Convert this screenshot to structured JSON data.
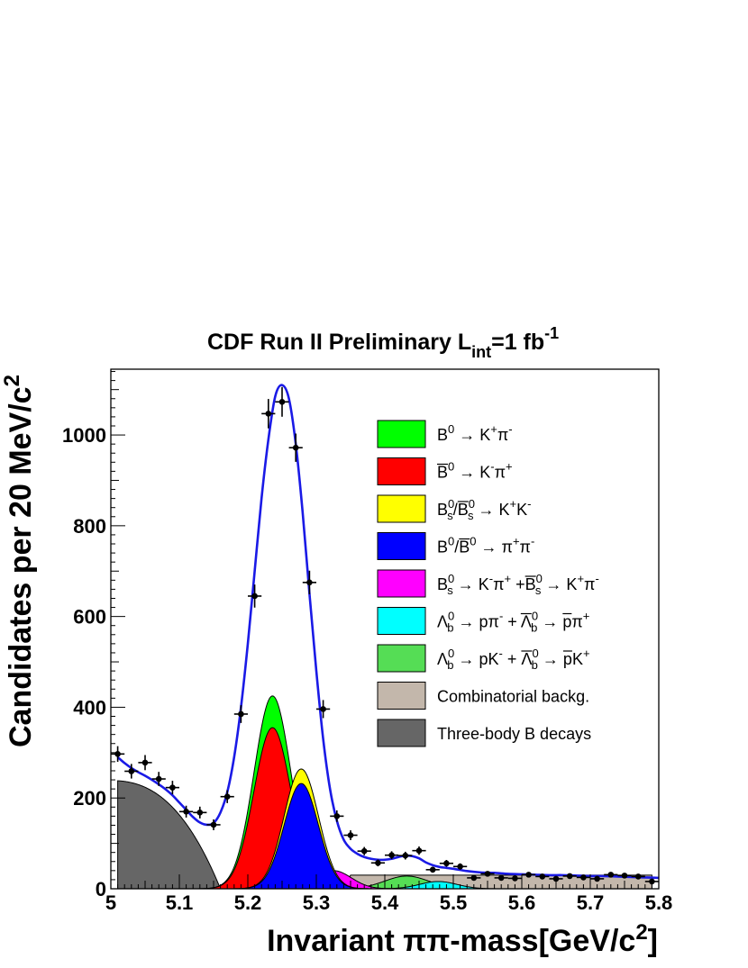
{
  "chart_data": {
    "type": "area",
    "title": {
      "base": "CDF Run II  Preliminary L",
      "sub": "int",
      "mid": "=1 fb",
      "sup": "-1"
    },
    "xlabel": {
      "base": "Invariant ππ-mass[GeV/c",
      "sup": "2",
      "end": "]"
    },
    "ylabel": {
      "base": "Candidates per 20 MeV/c",
      "sup": "2"
    },
    "xlim": [
      5.0,
      5.8
    ],
    "ylim": [
      0,
      1145
    ],
    "x_ticks": [
      "5",
      "5.1",
      "5.2",
      "5.3",
      "5.4",
      "5.5",
      "5.6",
      "5.7",
      "5.8"
    ],
    "x_tick_values": [
      5.0,
      5.1,
      5.2,
      5.3,
      5.4,
      5.5,
      5.6,
      5.7,
      5.8
    ],
    "y_ticks": [
      "0",
      "200",
      "400",
      "600",
      "800",
      "1000"
    ],
    "y_tick_values": [
      0,
      200,
      400,
      600,
      800,
      1000
    ],
    "legend_placement": "top-right",
    "components": [
      {
        "name": "B0 -> K+ pi-",
        "color": "#00ff00",
        "shape": "gauss",
        "mean": 5.236,
        "sigma": 0.026,
        "amp": 70,
        "stack_on": "Bbar0 -> K- pi+"
      },
      {
        "name": "Bbar0 -> K- pi+",
        "color": "#ff0000",
        "shape": "gauss",
        "mean": 5.236,
        "sigma": 0.027,
        "amp": 355,
        "stack_on": "baseline"
      },
      {
        "name": "Bs0/Bsbar0 -> K+ K-",
        "color": "#ffff00",
        "shape": "gauss",
        "mean": 5.278,
        "sigma": 0.026,
        "amp": 32,
        "stack_on": "B0/Bbar0 -> pi+ pi-"
      },
      {
        "name": "B0/Bbar0 -> pi+ pi-",
        "color": "#0000ff",
        "shape": "gauss",
        "mean": 5.278,
        "sigma": 0.025,
        "amp": 232,
        "stack_on": "baseline"
      },
      {
        "name": "Bs0 -> K- pi+ + Bsbar0 -> K+ pi-",
        "color": "#ff00ff",
        "shape": "gauss",
        "mean": 5.325,
        "sigma": 0.026,
        "amp": 40,
        "stack_on": "baseline"
      },
      {
        "name": "Lambda_b0 -> p pi- + Lambdabar_b0 -> pbar pi+",
        "color": "#00ffff",
        "shape": "gauss",
        "mean": 5.478,
        "sigma": 0.027,
        "amp": 16,
        "stack_on": "baseline"
      },
      {
        "name": "Lambda_b0 -> p K- + Lambdabar_b0 -> pbar K+",
        "color": "#55dd55",
        "shape": "gauss",
        "mean": 5.432,
        "sigma": 0.032,
        "amp": 28,
        "stack_on": "baseline"
      },
      {
        "name": "Combinatorial backg.",
        "color": "#c3b7ab",
        "shape": "flat",
        "x_start": 5.34,
        "x_end": 5.79,
        "value": 30
      },
      {
        "name": "Three-body B decays",
        "color": "#666666",
        "shape": "falling",
        "x_start": 5.01,
        "x_end": 5.16,
        "value_at_start": 238
      }
    ],
    "fit_curve": {
      "name": "fit",
      "color": "#1a1ae6",
      "x": [
        5.01,
        5.02,
        5.03,
        5.04,
        5.05,
        5.06,
        5.07,
        5.08,
        5.09,
        5.1,
        5.11,
        5.12,
        5.13,
        5.14,
        5.15,
        5.16,
        5.17,
        5.18,
        5.19,
        5.2,
        5.21,
        5.22,
        5.23,
        5.24,
        5.25,
        5.26,
        5.27,
        5.28,
        5.29,
        5.3,
        5.31,
        5.32,
        5.33,
        5.34,
        5.35,
        5.36,
        5.37,
        5.38,
        5.39,
        5.4,
        5.41,
        5.42,
        5.43,
        5.44,
        5.45,
        5.46,
        5.47,
        5.48,
        5.49,
        5.5,
        5.52,
        5.54,
        5.56,
        5.58,
        5.6,
        5.62,
        5.64,
        5.66,
        5.68,
        5.7,
        5.72,
        5.74,
        5.76,
        5.78,
        5.8
      ],
      "y": [
        290,
        277,
        266,
        257,
        249,
        240,
        230,
        219,
        206,
        190,
        174,
        158,
        146,
        141,
        145,
        168,
        213,
        290,
        400,
        540,
        700,
        860,
        990,
        1085,
        1110,
        1080,
        980,
        830,
        650,
        480,
        330,
        220,
        150,
        108,
        88,
        77,
        70,
        66,
        64,
        64,
        66,
        70,
        73,
        72,
        67,
        58,
        52,
        48,
        46,
        44,
        39,
        36,
        35,
        33,
        32,
        31,
        30,
        30,
        29,
        28,
        28,
        27,
        26,
        25,
        24
      ]
    },
    "data_points": {
      "name": "data",
      "color": "#000000",
      "x": [
        5.01,
        5.03,
        5.05,
        5.07,
        5.09,
        5.11,
        5.13,
        5.15,
        5.17,
        5.19,
        5.21,
        5.23,
        5.25,
        5.27,
        5.29,
        5.31,
        5.33,
        5.35,
        5.37,
        5.39,
        5.41,
        5.43,
        5.45,
        5.47,
        5.49,
        5.51,
        5.53,
        5.55,
        5.57,
        5.59,
        5.61,
        5.63,
        5.65,
        5.67,
        5.69,
        5.71,
        5.73,
        5.75,
        5.77,
        5.79
      ],
      "y": [
        297,
        259,
        278,
        242,
        223,
        170,
        168,
        141,
        203,
        385,
        645,
        1047,
        1073,
        972,
        675,
        396,
        160,
        118,
        83,
        57,
        74,
        73,
        84,
        42,
        56,
        49,
        24,
        33,
        24,
        23,
        31,
        27,
        22,
        28,
        25,
        22,
        31,
        29,
        27,
        16
      ]
    }
  },
  "legend": [
    {
      "color": "#00ff00",
      "label": {
        "kind": "p1"
      }
    },
    {
      "color": "#ff0000",
      "label": {
        "kind": "p2"
      }
    },
    {
      "color": "#ffff00",
      "label": {
        "kind": "p3"
      }
    },
    {
      "color": "#0000ff",
      "label": {
        "kind": "p4"
      }
    },
    {
      "color": "#ff00ff",
      "label": {
        "kind": "p5"
      }
    },
    {
      "color": "#00ffff",
      "label": {
        "kind": "p6"
      }
    },
    {
      "color": "#55dd55",
      "label": {
        "kind": "p7"
      }
    },
    {
      "color": "#c3b7ab",
      "label": {
        "kind": "text",
        "text": "Combinatorial backg."
      }
    },
    {
      "color": "#666666",
      "label": {
        "kind": "text",
        "text": "Three-body B decays"
      }
    }
  ],
  "legend_text": {
    "B": "B",
    "K": "K",
    "pi": "π",
    "Lambda": "Λ",
    "p": "p",
    "arrow": "→",
    "plus": "+",
    "minus": "-",
    "zero": "0",
    "s": "s",
    "b": "b",
    "slash": "/"
  }
}
